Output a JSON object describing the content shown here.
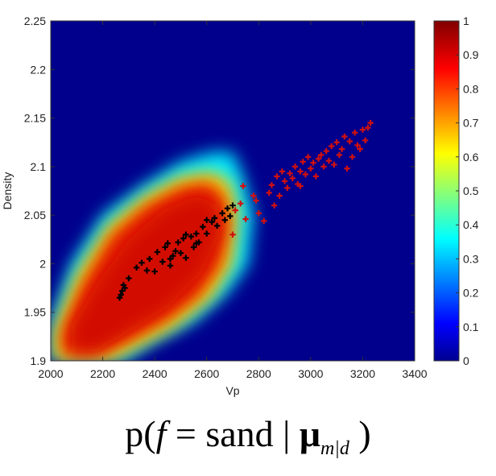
{
  "chart_data": {
    "type": "heatmap",
    "xlabel": "Vp",
    "ylabel": "Density",
    "xlim": [
      2000,
      3400
    ],
    "ylim": [
      1.9,
      2.25
    ],
    "xticks": [
      "2000",
      "2200",
      "2400",
      "2600",
      "2800",
      "3000",
      "3200",
      "3400"
    ],
    "yticks": [
      "1.9",
      "1.95",
      "2",
      "2.05",
      "2.1",
      "2.15",
      "2.2",
      "2.25"
    ],
    "colorbar": {
      "range": [
        0,
        1
      ],
      "ticks": [
        "0",
        "0.1",
        "0.2",
        "0.3",
        "0.4",
        "0.5",
        "0.6",
        "0.7",
        "0.8",
        "0.9",
        "1"
      ],
      "colormap": "jet"
    },
    "grid": false,
    "series": [
      {
        "marker_color": "#000000",
        "points": [
          [
            2265,
            1.965
          ],
          [
            2275,
            1.972
          ],
          [
            2280,
            1.978
          ],
          [
            2270,
            1.968
          ],
          [
            2285,
            1.975
          ],
          [
            2300,
            1.985
          ],
          [
            2330,
            1.996
          ],
          [
            2350,
            2.001
          ],
          [
            2370,
            1.993
          ],
          [
            2380,
            2.005
          ],
          [
            2400,
            1.992
          ],
          [
            2410,
            2.012
          ],
          [
            2430,
            2.002
          ],
          [
            2440,
            2.017
          ],
          [
            2450,
            2.021
          ],
          [
            2460,
            1.998
          ],
          [
            2470,
            2.008
          ],
          [
            2480,
            2.013
          ],
          [
            2490,
            2.022
          ],
          [
            2500,
            2.011
          ],
          [
            2510,
            2.026
          ],
          [
            2520,
            2.006
          ],
          [
            2540,
            2.028
          ],
          [
            2550,
            2.017
          ],
          [
            2560,
            2.031
          ],
          [
            2570,
            2.022
          ],
          [
            2585,
            2.038
          ],
          [
            2600,
            2.031
          ],
          [
            2620,
            2.043
          ],
          [
            2630,
            2.047
          ],
          [
            2640,
            2.039
          ],
          [
            2660,
            2.052
          ],
          [
            2670,
            2.045
          ],
          [
            2680,
            2.057
          ],
          [
            2690,
            2.049
          ],
          [
            2700,
            2.06
          ],
          [
            2520,
            2.03
          ],
          [
            2600,
            2.045
          ],
          [
            2460,
            2.005
          ],
          [
            2560,
            2.021
          ]
        ]
      },
      {
        "marker_color": "#d01010",
        "points": [
          [
            2700,
            2.03
          ],
          [
            2710,
            2.055
          ],
          [
            2730,
            2.062
          ],
          [
            2740,
            2.08
          ],
          [
            2750,
            2.046
          ],
          [
            2780,
            2.07
          ],
          [
            2800,
            2.052
          ],
          [
            2820,
            2.044
          ],
          [
            2840,
            2.073
          ],
          [
            2850,
            2.081
          ],
          [
            2860,
            2.06
          ],
          [
            2870,
            2.09
          ],
          [
            2880,
            2.07
          ],
          [
            2890,
            2.095
          ],
          [
            2900,
            2.085
          ],
          [
            2910,
            2.078
          ],
          [
            2920,
            2.093
          ],
          [
            2930,
            2.088
          ],
          [
            2940,
            2.1
          ],
          [
            2950,
            2.082
          ],
          [
            2960,
            2.095
          ],
          [
            2970,
            2.105
          ],
          [
            2980,
            2.092
          ],
          [
            2990,
            2.11
          ],
          [
            3000,
            2.098
          ],
          [
            3010,
            2.104
          ],
          [
            3020,
            2.09
          ],
          [
            3030,
            2.108
          ],
          [
            3040,
            2.112
          ],
          [
            3050,
            2.1
          ],
          [
            3060,
            2.116
          ],
          [
            3070,
            2.106
          ],
          [
            3080,
            2.121
          ],
          [
            3090,
            2.102
          ],
          [
            3100,
            2.125
          ],
          [
            3110,
            2.112
          ],
          [
            3120,
            2.118
          ],
          [
            3130,
            2.131
          ],
          [
            3140,
            2.098
          ],
          [
            3150,
            2.126
          ],
          [
            3160,
            2.11
          ],
          [
            3170,
            2.135
          ],
          [
            3180,
            2.122
          ],
          [
            3190,
            2.118
          ],
          [
            3200,
            2.138
          ],
          [
            3210,
            2.127
          ],
          [
            3220,
            2.14
          ],
          [
            3230,
            2.145
          ],
          [
            2790,
            2.065
          ],
          [
            2960,
            2.08
          ]
        ]
      }
    ],
    "density_region": {
      "description_values": {
        "axis_vp_from": [
          2060,
          2700
        ],
        "axis_density_from": [
          1.93,
          2.085
        ],
        "cap_density": 2.115
      }
    }
  },
  "formula": {
    "p": "p(",
    "f": "f",
    "eq": " = sand | ",
    "mu": "μ",
    "sub": "m|d",
    "close": " )"
  }
}
